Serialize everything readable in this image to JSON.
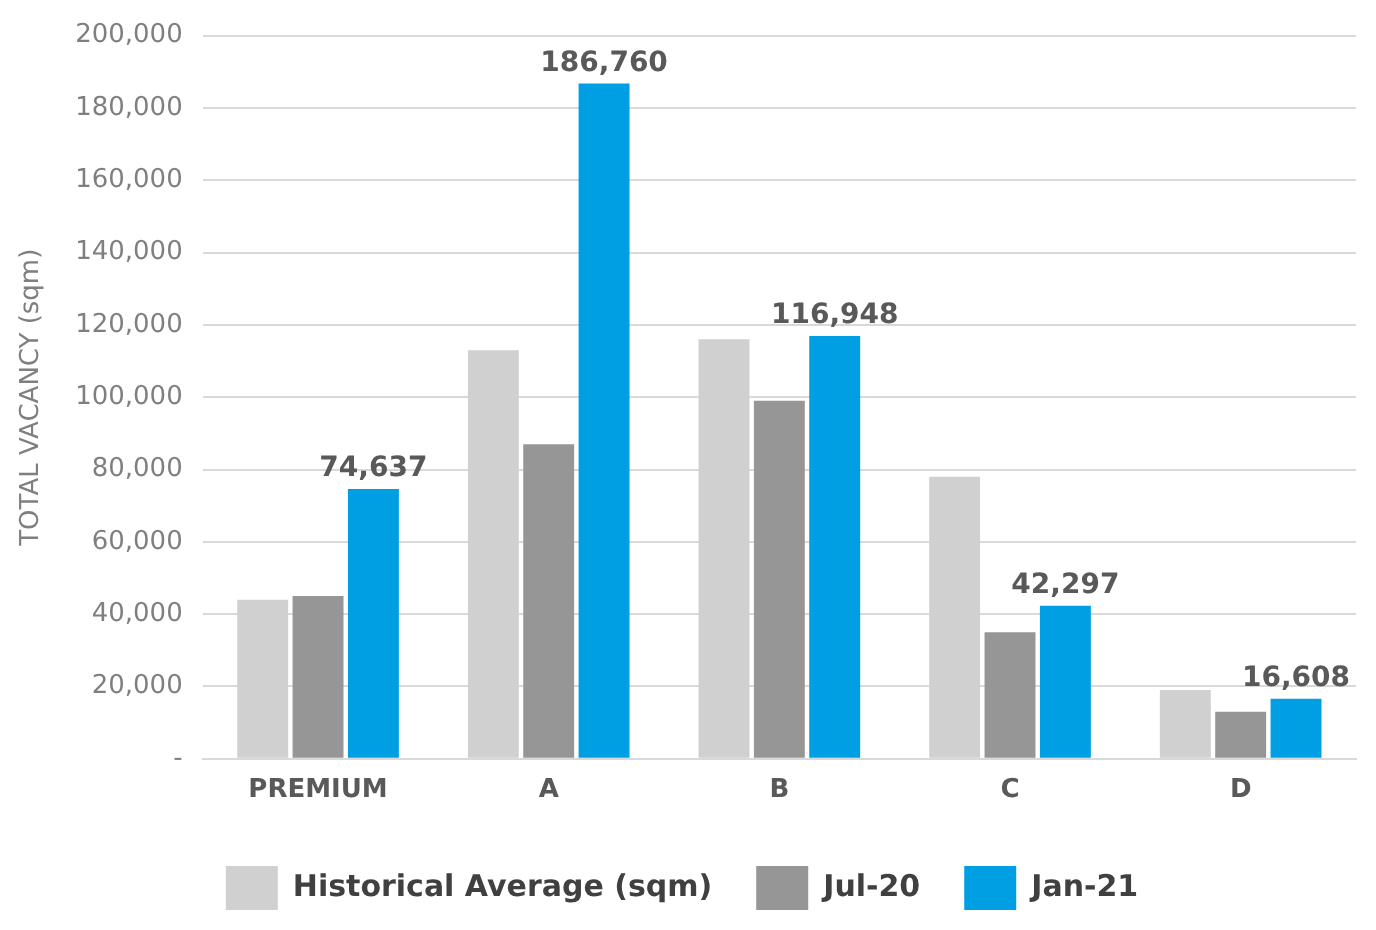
{
  "chart_data": {
    "type": "bar",
    "ylabel": "TOTAL VACANCY (sqm)",
    "categories": [
      "PREMIUM",
      "A",
      "B",
      "C",
      "D"
    ],
    "series": [
      {
        "name": "Historical Average (sqm)",
        "color": "#d0d0d0",
        "values": [
          44000,
          113000,
          116000,
          78000,
          19000
        ]
      },
      {
        "name": "Jul-20",
        "color": "#969696",
        "values": [
          45000,
          87000,
          99000,
          35000,
          13000
        ]
      },
      {
        "name": "Jan-21",
        "color": "#009fe3",
        "values": [
          74637,
          186760,
          116948,
          42297,
          16608
        ],
        "value_labels": [
          "74,637",
          "186,760",
          "116,948",
          "42,297",
          "16,608"
        ]
      }
    ],
    "ylim": [
      0,
      200000
    ],
    "yticks": [
      {
        "value": 0,
        "label": "-"
      },
      {
        "value": 20000,
        "label": "20,000"
      },
      {
        "value": 40000,
        "label": "40,000"
      },
      {
        "value": 60000,
        "label": "60,000"
      },
      {
        "value": 80000,
        "label": "80,000"
      },
      {
        "value": 100000,
        "label": "100,000"
      },
      {
        "value": 120000,
        "label": "120,000"
      },
      {
        "value": 140000,
        "label": "140,000"
      },
      {
        "value": 160000,
        "label": "160,000"
      },
      {
        "value": 180000,
        "label": "180,000"
      },
      {
        "value": 200000,
        "label": "200,000"
      }
    ],
    "grid": "y",
    "legend": "bottom"
  }
}
